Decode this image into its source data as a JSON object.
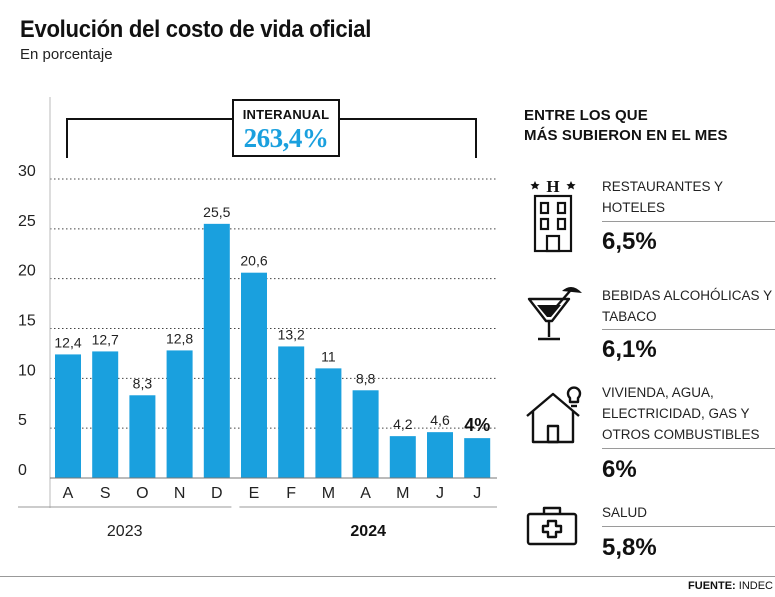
{
  "header": {
    "title": "Evolución del costo de vida oficial",
    "subtitle": "En porcentaje"
  },
  "interanual": {
    "label": "INTERANUAL",
    "value": "263,4%"
  },
  "chart_data": {
    "type": "bar",
    "categories": [
      "A",
      "S",
      "O",
      "N",
      "D",
      "E",
      "F",
      "M",
      "A",
      "M",
      "J",
      "J"
    ],
    "values": [
      12.4,
      12.7,
      8.3,
      12.8,
      25.5,
      20.6,
      13.2,
      11,
      8.8,
      4.2,
      4.6,
      4
    ],
    "data_labels": [
      "12,4",
      "12,7",
      "8,3",
      "12,8",
      "25,5",
      "20,6",
      "13,2",
      "11",
      "8,8",
      "4,2",
      "4,6",
      "4%"
    ],
    "ylim": [
      0,
      30
    ],
    "yticks": [
      0,
      5,
      10,
      15,
      20,
      25,
      30
    ],
    "grid": true,
    "bar_color": "#1aa0de",
    "year_groups": [
      {
        "label": "2023",
        "start": 0,
        "end": 4
      },
      {
        "label": "2024",
        "start": 5,
        "end": 11
      }
    ],
    "title": "Evolución del costo de vida oficial",
    "xlabel": "",
    "ylabel": ""
  },
  "sidebar": {
    "title_line1": "ENTRE LOS QUE",
    "title_line2": "MÁS SUBIERON EN EL MES",
    "items": [
      {
        "icon": "hotel-icon",
        "name": "Restaurantes y hoteles",
        "value": "6,5%"
      },
      {
        "icon": "cocktail-icon",
        "name": "Bebidas alcohólicas y tabaco",
        "value": "6,1%"
      },
      {
        "icon": "house-lightbulb-icon",
        "name": "Vivienda, agua, electricidad, gas y otros combustibles",
        "value": "6%"
      },
      {
        "icon": "first-aid-kit-icon",
        "name": "Salud",
        "value": "5,8%"
      }
    ]
  },
  "footer": {
    "source_label": "FUENTE:",
    "source_value": "INDEC"
  }
}
